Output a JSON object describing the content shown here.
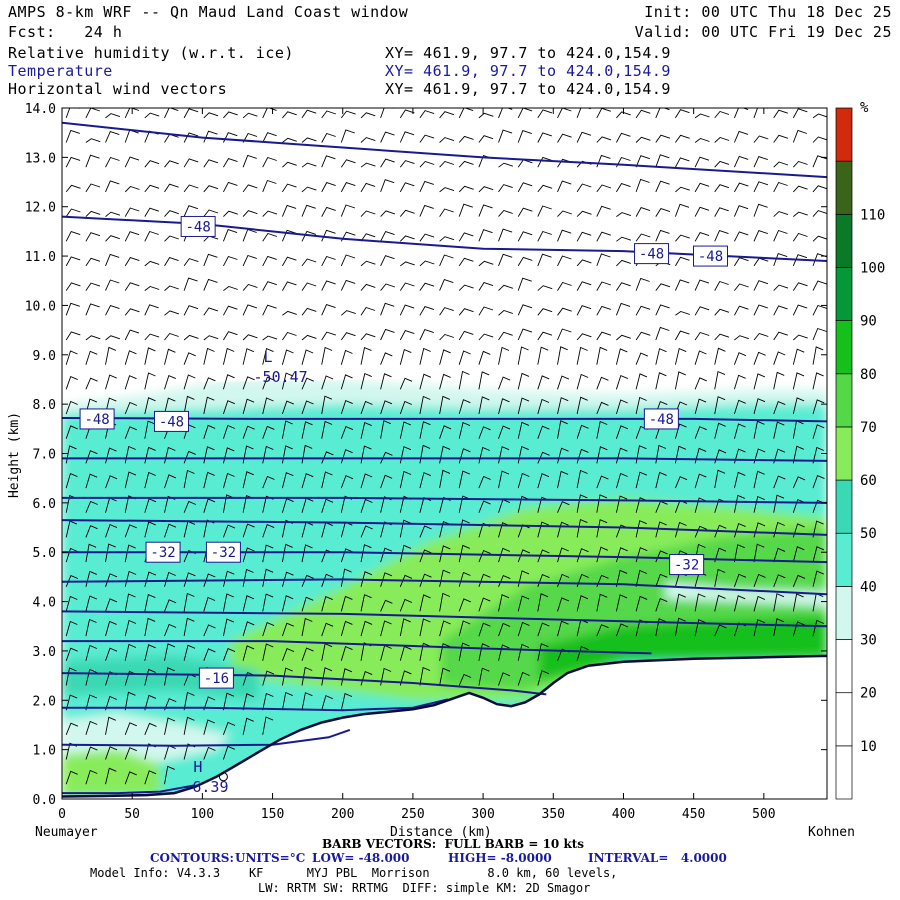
{
  "header": {
    "title": "AMPS 8-km WRF -- Qn Maud Land Coast window",
    "init": "Init: 00 UTC Thu 18 Dec 25",
    "fcst": "Fcst:   24 h",
    "valid": "Valid: 00 UTC Fri 19 Dec 25",
    "fields": [
      {
        "name": "Relative humidity (w.r.t. ice)",
        "xy": "XY= 461.9, 97.7 to 424.0,154.9"
      },
      {
        "name": "Temperature",
        "xy": "XY= 461.9, 97.7 to 424.0,154.9"
      },
      {
        "name": "Horizontal wind vectors",
        "xy": "XY= 461.9, 97.7 to 424.0,154.9"
      }
    ]
  },
  "chart_data": {
    "type": "area",
    "xlabel": "Distance (km)",
    "ylabel": "Height (km)",
    "xlim": [
      0,
      545
    ],
    "ylim": [
      0,
      14
    ],
    "xticks": [
      0,
      50,
      100,
      150,
      200,
      250,
      300,
      350,
      400,
      450,
      500
    ],
    "yticks": [
      "0.0",
      "1.0",
      "2.0",
      "3.0",
      "4.0",
      "5.0",
      "6.0",
      "7.0",
      "8.0",
      "9.0",
      "10.0",
      "11.0",
      "12.0",
      "13.0",
      "14.0"
    ],
    "left_end_label": "Neumayer",
    "right_end_label": "Kohnen",
    "colorbar": {
      "unit": "%",
      "labels": [
        "10",
        "20",
        "30",
        "40",
        "50",
        "60",
        "70",
        "80",
        "90",
        "100",
        "110"
      ],
      "colors": [
        "#ffffff",
        "#ffffff",
        "#ffffff",
        "#d2f7ee",
        "#58ecd3",
        "#3ad8b4",
        "#88ec5a",
        "#54d848",
        "#16c01c",
        "#049838",
        "#0a7a28",
        "#3a6418",
        "#d22a0c"
      ]
    },
    "terrain": [
      [
        0,
        0.05
      ],
      [
        30,
        0.06
      ],
      [
        60,
        0.08
      ],
      [
        80,
        0.12
      ],
      [
        95,
        0.25
      ],
      [
        110,
        0.45
      ],
      [
        125,
        0.7
      ],
      [
        140,
        0.95
      ],
      [
        155,
        1.2
      ],
      [
        170,
        1.4
      ],
      [
        185,
        1.55
      ],
      [
        200,
        1.65
      ],
      [
        215,
        1.72
      ],
      [
        230,
        1.76
      ],
      [
        250,
        1.82
      ],
      [
        265,
        1.9
      ],
      [
        280,
        2.05
      ],
      [
        290,
        2.15
      ],
      [
        300,
        2.05
      ],
      [
        310,
        1.92
      ],
      [
        320,
        1.88
      ],
      [
        330,
        1.96
      ],
      [
        340,
        2.12
      ],
      [
        350,
        2.35
      ],
      [
        360,
        2.55
      ],
      [
        375,
        2.7
      ],
      [
        400,
        2.78
      ],
      [
        450,
        2.84
      ],
      [
        500,
        2.87
      ],
      [
        545,
        2.9
      ]
    ],
    "temperature_contours": [
      {
        "id": "c1",
        "points": [
          [
            0,
            13.7
          ],
          [
            100,
            13.4
          ],
          [
            200,
            13.2
          ],
          [
            300,
            13.0
          ],
          [
            400,
            12.85
          ],
          [
            545,
            12.6
          ]
        ]
      },
      {
        "id": "c2",
        "points": [
          [
            0,
            11.8
          ],
          [
            100,
            11.65
          ],
          [
            200,
            11.35
          ],
          [
            300,
            11.15
          ],
          [
            400,
            11.1
          ],
          [
            545,
            10.9
          ]
        ]
      },
      {
        "id": "c3",
        "points": [
          [
            0,
            7.72
          ],
          [
            150,
            7.7
          ],
          [
            300,
            7.7
          ],
          [
            450,
            7.7
          ],
          [
            545,
            7.65
          ]
        ]
      },
      {
        "id": "c4",
        "points": [
          [
            0,
            6.9
          ],
          [
            200,
            6.9
          ],
          [
            400,
            6.9
          ],
          [
            545,
            6.85
          ]
        ]
      },
      {
        "id": "c5",
        "points": [
          [
            0,
            6.1
          ],
          [
            200,
            6.1
          ],
          [
            400,
            6.05
          ],
          [
            545,
            6.0
          ]
        ]
      },
      {
        "id": "c6",
        "points": [
          [
            0,
            5.65
          ],
          [
            200,
            5.6
          ],
          [
            400,
            5.5
          ],
          [
            545,
            5.35
          ]
        ]
      },
      {
        "id": "c7",
        "points": [
          [
            0,
            5.0
          ],
          [
            200,
            5.0
          ],
          [
            400,
            4.9
          ],
          [
            545,
            4.8
          ]
        ]
      },
      {
        "id": "c8",
        "points": [
          [
            0,
            4.4
          ],
          [
            200,
            4.45
          ],
          [
            400,
            4.35
          ],
          [
            545,
            4.15
          ]
        ]
      },
      {
        "id": "c9",
        "points": [
          [
            0,
            3.8
          ],
          [
            200,
            3.75
          ],
          [
            400,
            3.6
          ],
          [
            545,
            3.5
          ]
        ]
      },
      {
        "id": "c10",
        "points": [
          [
            0,
            3.2
          ],
          [
            150,
            3.2
          ],
          [
            300,
            3.05
          ],
          [
            420,
            2.95
          ]
        ]
      },
      {
        "id": "c11",
        "points": [
          [
            0,
            2.55
          ],
          [
            150,
            2.5
          ],
          [
            250,
            2.35
          ],
          [
            320,
            2.2
          ],
          [
            345,
            2.12
          ]
        ]
      },
      {
        "id": "c12",
        "points": [
          [
            0,
            1.85
          ],
          [
            100,
            1.85
          ],
          [
            200,
            1.8
          ],
          [
            250,
            1.85
          ],
          [
            275,
            2.02
          ]
        ]
      },
      {
        "id": "c13",
        "points": [
          [
            0,
            1.1
          ],
          [
            80,
            1.08
          ],
          [
            150,
            1.1
          ],
          [
            190,
            1.25
          ],
          [
            205,
            1.4
          ]
        ]
      },
      {
        "id": "c14",
        "points": [
          [
            0,
            0.12
          ],
          [
            40,
            0.12
          ],
          [
            70,
            0.15
          ],
          [
            95,
            0.28
          ]
        ]
      }
    ],
    "contour_labels": [
      {
        "text": "-48",
        "x": 97,
        "y": 11.6
      },
      {
        "text": "-48",
        "x": 420,
        "y": 11.05
      },
      {
        "text": "-48",
        "x": 462,
        "y": 11.0
      },
      {
        "text": "-48",
        "x": 25,
        "y": 7.7
      },
      {
        "text": "-48",
        "x": 78,
        "y": 7.65
      },
      {
        "text": "-48",
        "x": 427,
        "y": 7.7
      },
      {
        "text": "-32",
        "x": 72,
        "y": 5.0
      },
      {
        "text": "-32",
        "x": 115,
        "y": 5.0
      },
      {
        "text": "-32",
        "x": 445,
        "y": 4.75
      },
      {
        "text": "-16",
        "x": 110,
        "y": 2.45
      }
    ],
    "extrema": [
      {
        "type": "L",
        "value": "-50.47",
        "x": 145,
        "y": 8.85
      },
      {
        "type": "H",
        "value": "-6.39",
        "x": 95,
        "y": 0.55
      }
    ],
    "barb_legend": "BARB VECTORS:  FULL BARB = 10 kts",
    "contour_info": {
      "label": "CONTOURS:",
      "units": "UNITS=°C",
      "low": "LOW= -48.000",
      "high": "HIGH= -8.0000",
      "interval": "INTERVAL=   4.0000"
    },
    "model_info": [
      "Model Info: V4.3.3    KF      MYJ PBL  Morrison        8.0 km, 60 levels,",
      "LW: RRTM SW: RRTMG  DIFF: simple KM: 2D Smagor"
    ]
  }
}
